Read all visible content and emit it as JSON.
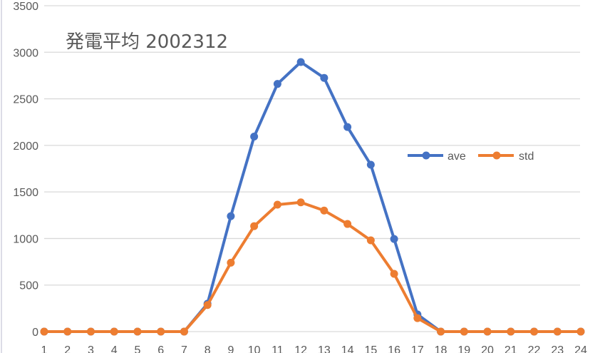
{
  "chart_data": {
    "type": "line",
    "title": "発電平均 2002312",
    "xlabel": "",
    "ylabel": "",
    "categories": [
      "1",
      "2",
      "3",
      "4",
      "5",
      "6",
      "7",
      "8",
      "9",
      "10",
      "11",
      "12",
      "13",
      "14",
      "15",
      "16",
      "17",
      "18",
      "19",
      "20",
      "21",
      "22",
      "23",
      "24"
    ],
    "series": [
      {
        "name": "ave",
        "color": "#4472C4",
        "values": [
          0,
          0,
          0,
          0,
          0,
          0,
          0,
          300,
          1240,
          2095,
          2660,
          2895,
          2725,
          2197,
          1792,
          995,
          185,
          0,
          0,
          0,
          0,
          0,
          0,
          0
        ]
      },
      {
        "name": "std",
        "color": "#ED7D31",
        "values": [
          0,
          0,
          0,
          0,
          0,
          0,
          0,
          285,
          740,
          1133,
          1363,
          1388,
          1300,
          1156,
          980,
          620,
          145,
          0,
          0,
          0,
          0,
          0,
          0,
          0
        ]
      }
    ],
    "ylim": [
      0,
      3500
    ],
    "yticks": [
      0,
      500,
      1000,
      1500,
      2000,
      2500,
      3000,
      3500
    ],
    "grid": true,
    "legend_position": "inside-right"
  },
  "colors": {
    "grid": "#D9D9D9",
    "text": "#595959",
    "background": "#FFFFFF"
  }
}
